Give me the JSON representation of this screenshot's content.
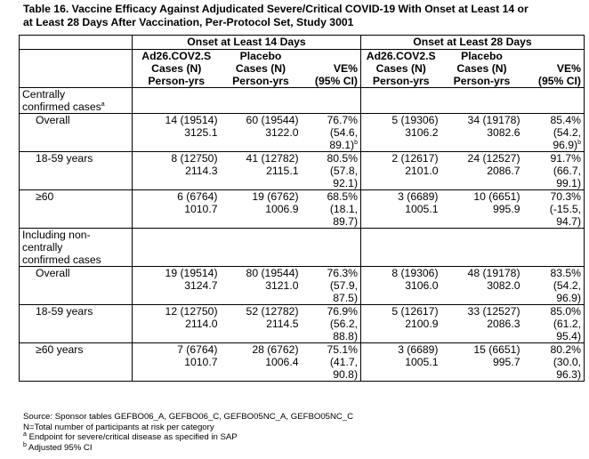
{
  "caption": {
    "line1": "Table 16. Vaccine Efficacy Against Adjudicated Severe/Critical COVID-19 With Onset at Least 14 or",
    "line2": "at Least 28 Days After Vaccination, Per-Protocol Set, Study 3001"
  },
  "groups": {
    "g14": "Onset at Least 14 Days",
    "g28": "Onset at Least 28 Days"
  },
  "columns": {
    "vax": [
      "Ad26.COV2.S",
      "Cases (N)",
      "Person-yrs"
    ],
    "pbo": [
      "Placebo",
      "Cases (N)",
      "Person-yrs"
    ],
    "ve": [
      "VE%",
      "(95% CI)"
    ]
  },
  "sections": [
    {
      "title": [
        "Centrally",
        "confirmed cases"
      ],
      "title_sup": "a",
      "rows": [
        {
          "label": "Overall",
          "d14": {
            "vax": [
              "14 (19514)",
              "3125.1"
            ],
            "pbo": [
              "60 (19544)",
              "3122.0"
            ],
            "ve": [
              "76.7%",
              "(54.6,",
              "89.1)"
            ],
            "ve_sup": "b"
          },
          "d28": {
            "vax": [
              "5 (19306)",
              "3106.2"
            ],
            "pbo": [
              "34 (19178)",
              "3082.6"
            ],
            "ve": [
              "85.4%",
              "(54.2,",
              "96.9)"
            ],
            "ve_sup": "b"
          }
        },
        {
          "label": "18-59 years",
          "d14": {
            "vax": [
              "8 (12750)",
              "2114.3"
            ],
            "pbo": [
              "41 (12782)",
              "2115.1"
            ],
            "ve": [
              "80.5%",
              "(57.8,",
              "92.1)"
            ]
          },
          "d28": {
            "vax": [
              "2 (12617)",
              "2101.0"
            ],
            "pbo": [
              "24 (12527)",
              "2086.7"
            ],
            "ve": [
              "91.7%",
              "(66.7,",
              "99.1)"
            ]
          }
        },
        {
          "label": "≥60",
          "d14": {
            "vax": [
              "6 (6764)",
              "1010.7"
            ],
            "pbo": [
              "19 (6762)",
              "1006.9"
            ],
            "ve": [
              "68.5%",
              "(18.1,",
              "89.7)"
            ]
          },
          "d28": {
            "vax": [
              "3 (6689)",
              "1005.1"
            ],
            "pbo": [
              "10 (6651)",
              "995.9"
            ],
            "ve": [
              "70.3%",
              "(-15.5,",
              "94.7)"
            ]
          }
        }
      ]
    },
    {
      "title": [
        "Including non-",
        "centrally",
        "confirmed cases"
      ],
      "rows": [
        {
          "label": "Overall",
          "d14": {
            "vax": [
              "19 (19514)",
              "3124.7"
            ],
            "pbo": [
              "80 (19544)",
              "3121.0"
            ],
            "ve": [
              "76.3%",
              "(57.9,",
              "87.5)"
            ]
          },
          "d28": {
            "vax": [
              "8 (19306)",
              "3106.0"
            ],
            "pbo": [
              "48 (19178)",
              "3082.0"
            ],
            "ve": [
              "83.5%",
              "(54.2,",
              "96.9)"
            ]
          }
        },
        {
          "label": "18-59 years",
          "d14": {
            "vax": [
              "12 (12750)",
              "2114.0"
            ],
            "pbo": [
              "52 (12782)",
              "2114.5"
            ],
            "ve": [
              "76.9%",
              "(56.2,",
              "88.8)"
            ]
          },
          "d28": {
            "vax": [
              "5 (12617)",
              "2100.9"
            ],
            "pbo": [
              "33 (12527)",
              "2086.3"
            ],
            "ve": [
              "85.0%",
              "(61.2,",
              "95.4)"
            ]
          }
        },
        {
          "label": "≥60 years",
          "d14": {
            "vax": [
              "7 (6764)",
              "1010.7"
            ],
            "pbo": [
              "28 (6762)",
              "1006.4"
            ],
            "ve": [
              "75.1%",
              "(41.7,",
              "90.8)"
            ]
          },
          "d28": {
            "vax": [
              "3 (6689)",
              "1005.1"
            ],
            "pbo": [
              "15 (6651)",
              "995.7"
            ],
            "ve": [
              "80.2%",
              "(30.0,",
              "96.3)"
            ]
          }
        }
      ]
    }
  ],
  "footer": {
    "source": "Source: Sponsor tables GEFBO06_A, GEFBO06_C, GEFBO05NC_A, GEFBO05NC_C",
    "n_def": "N=Total number of participants at risk per category",
    "note_a_mark": "a",
    "note_a": " Endpoint for severe/critical disease as specified in SAP",
    "note_b_mark": "b",
    "note_b": " Adjusted 95% CI"
  }
}
